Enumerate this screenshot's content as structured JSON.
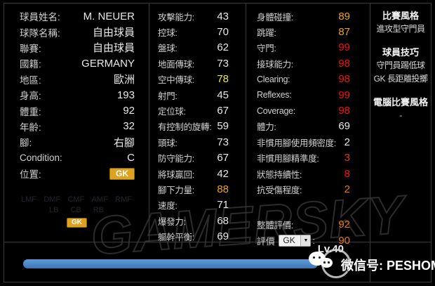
{
  "colors": {
    "white": "#e8e8e8",
    "yellow": "#e6ec3e",
    "gold": "#e8a51c",
    "red": "#f21212",
    "orange": "#e5761b",
    "redorange": "#e03a12",
    "badge_gold": "#dfa21f",
    "bar_blue": "#4d87c7",
    "panel_border": "#3b3b3d"
  },
  "player_info": {
    "rows": [
      {
        "label": "球員姓名:",
        "value": "M. NEUER",
        "color": "white"
      },
      {
        "label": "球隊名稱:",
        "value": "自由球員",
        "color": "white"
      },
      {
        "label": "聯賽:",
        "value": "自由球員",
        "color": "white"
      },
      {
        "label": "國籍:",
        "value": "GERMANY",
        "color": "white"
      },
      {
        "label": "地區:",
        "value": "歐洲",
        "color": "white"
      },
      {
        "label": "身高:",
        "value": "193",
        "color": "white"
      },
      {
        "label": "體重:",
        "value": "92",
        "color": "white"
      },
      {
        "label": "年齡:",
        "value": "32",
        "color": "white"
      },
      {
        "label": "腳:",
        "value": "右腳",
        "color": "white"
      },
      {
        "label": "Condition:",
        "value": "C",
        "color": "white"
      },
      {
        "label": "位置:",
        "badge": "GK"
      }
    ]
  },
  "position_grid": {
    "row1": [
      "LMF",
      "DMF",
      "CMF",
      "AMF",
      "RMF"
    ],
    "row2": [
      "LB",
      "CB",
      "RB"
    ],
    "badge": "GK"
  },
  "attack_stats": {
    "rows": [
      {
        "label": "攻擊能力:",
        "value": "43",
        "color": "white"
      },
      {
        "label": "控球:",
        "value": "70",
        "color": "white"
      },
      {
        "label": "盤球:",
        "value": "62",
        "color": "white"
      },
      {
        "label": "地面傳球:",
        "value": "73",
        "color": "white"
      },
      {
        "label": "空中傳球:",
        "value": "78",
        "color": "yellow"
      },
      {
        "label": "射門:",
        "value": "45",
        "color": "white"
      },
      {
        "label": "定位球:",
        "value": "67",
        "color": "white"
      },
      {
        "label": "有控制的旋轉:",
        "value": "59",
        "color": "white"
      },
      {
        "label": "頭球:",
        "value": "73",
        "color": "white"
      },
      {
        "label": "防守能力:",
        "value": "67",
        "color": "white"
      },
      {
        "label": "將球贏回:",
        "value": "42",
        "color": "white"
      },
      {
        "label": "腳下力量:",
        "value": "88",
        "color": "gold"
      },
      {
        "label": "速度:",
        "value": "71",
        "color": "white"
      },
      {
        "label": "爆發力:",
        "value": "68",
        "color": "white"
      },
      {
        "label": "軀幹平衡:",
        "value": "69",
        "color": "white"
      }
    ]
  },
  "gk_stats": {
    "rows": [
      {
        "label": "身體碰撞:",
        "value": "89",
        "color": "gold"
      },
      {
        "label": "跳躍:",
        "value": "87",
        "color": "gold"
      },
      {
        "label": "守門:",
        "value": "99",
        "color": "red"
      },
      {
        "label": "接球能力:",
        "value": "98",
        "color": "red"
      },
      {
        "label": "Clearing:",
        "value": "98",
        "color": "red"
      },
      {
        "label": "Reflexes:",
        "value": "99",
        "color": "red"
      },
      {
        "label": "Coverage:",
        "value": "98",
        "color": "red"
      },
      {
        "label": "體力:",
        "value": "69",
        "color": "white"
      },
      {
        "label": "非慣用腳使用頻密度:",
        "value": "2",
        "color": "white"
      },
      {
        "label": "非慣用腳精準度:",
        "value": "3",
        "color": "redorange"
      },
      {
        "label": "狀態持續性:",
        "value": "8",
        "color": "red"
      },
      {
        "label": "抗受傷程度:",
        "value": "2",
        "color": "orange"
      }
    ],
    "overall": {
      "label": "整體評價:",
      "value": "92",
      "color": "orange"
    },
    "rating": {
      "label": "評價",
      "select_value": "GK",
      "colon": ":",
      "value": "90",
      "color": "orange"
    }
  },
  "playstyle_panel": {
    "style_header": "比賽風格",
    "style_item": "進攻型守門員",
    "skills_header": "球員技巧",
    "skill_items": [
      "守門員踢低球",
      "GK 長距離投擲"
    ],
    "com_header": "電腦比賽風格",
    "com_item": "-"
  },
  "footer": {
    "level": "Lv.40",
    "progress_percent": 93,
    "wechat_label": "微信号: PESHOME"
  },
  "watermark": {
    "text": "GAMERSKY"
  }
}
